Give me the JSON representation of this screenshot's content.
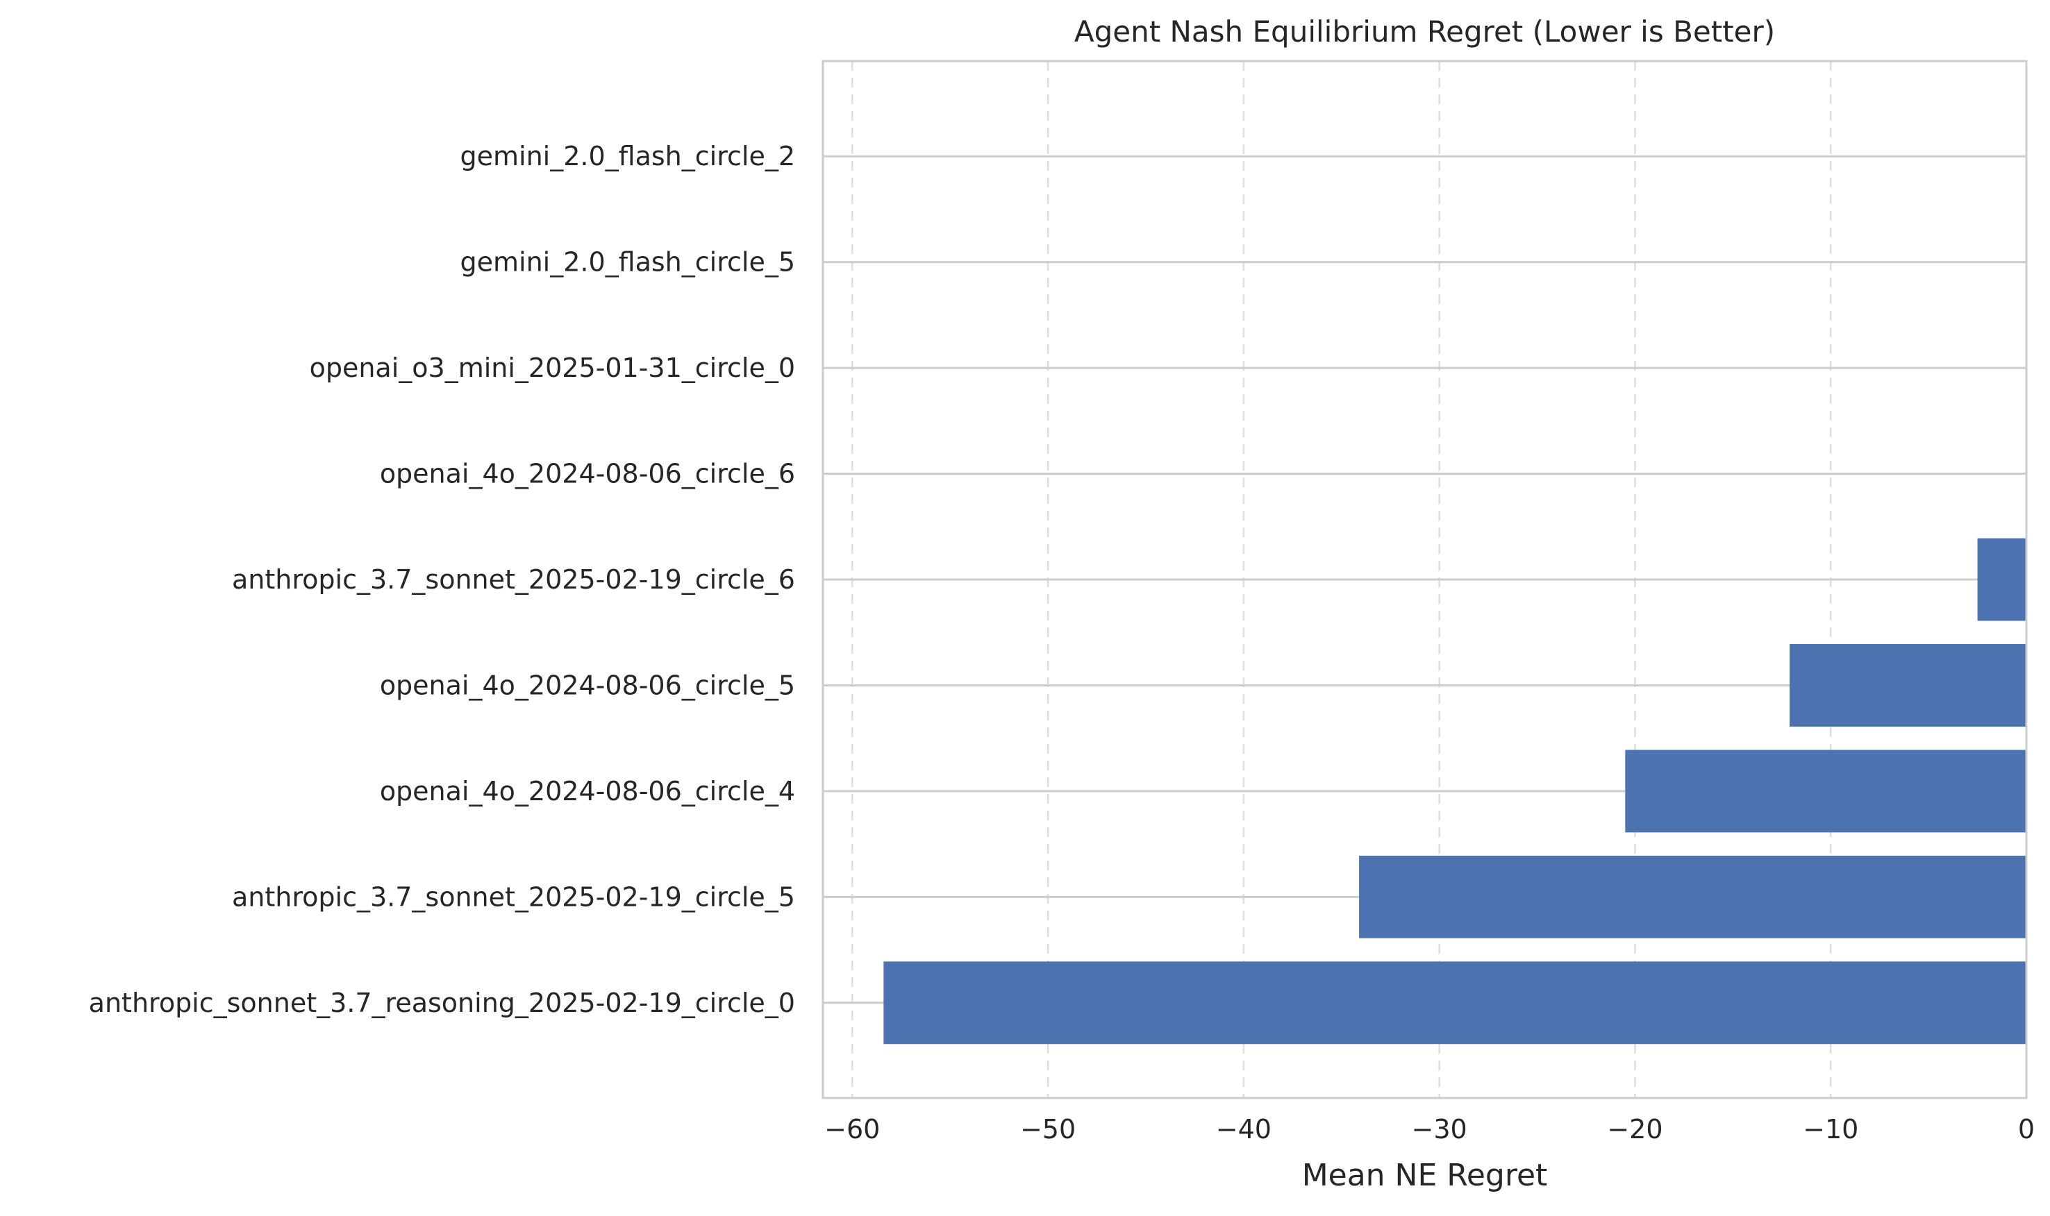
{
  "chart_data": {
    "type": "bar",
    "orientation": "horizontal",
    "title": "Agent Nash Equilibrium Regret (Lower is Better)",
    "xlabel": "Mean NE Regret",
    "ylabel": "",
    "xlim": [
      -61.5,
      0
    ],
    "xticks": [
      -60,
      -50,
      -40,
      -30,
      -20,
      -10,
      0
    ],
    "xtick_labels": [
      "−60",
      "−50",
      "−40",
      "−30",
      "−20",
      "−10",
      "0"
    ],
    "grid": {
      "x": "dashed",
      "y": "solid"
    },
    "bar_color": "#4c72b0",
    "categories": [
      "gemini_2.0_flash_circle_2",
      "gemini_2.0_flash_circle_5",
      "openai_o3_mini_2025-01-31_circle_0",
      "openai_4o_2024-08-06_circle_6",
      "anthropic_3.7_sonnet_2025-02-19_circle_6",
      "openai_4o_2024-08-06_circle_5",
      "openai_4o_2024-08-06_circle_4",
      "anthropic_3.7_sonnet_2025-02-19_circle_5",
      "anthropic_sonnet_3.7_reasoning_2025-02-19_circle_0"
    ],
    "values": [
      0,
      0,
      0,
      0,
      -2.5,
      -12.1,
      -20.5,
      -34.1,
      -58.4
    ]
  }
}
